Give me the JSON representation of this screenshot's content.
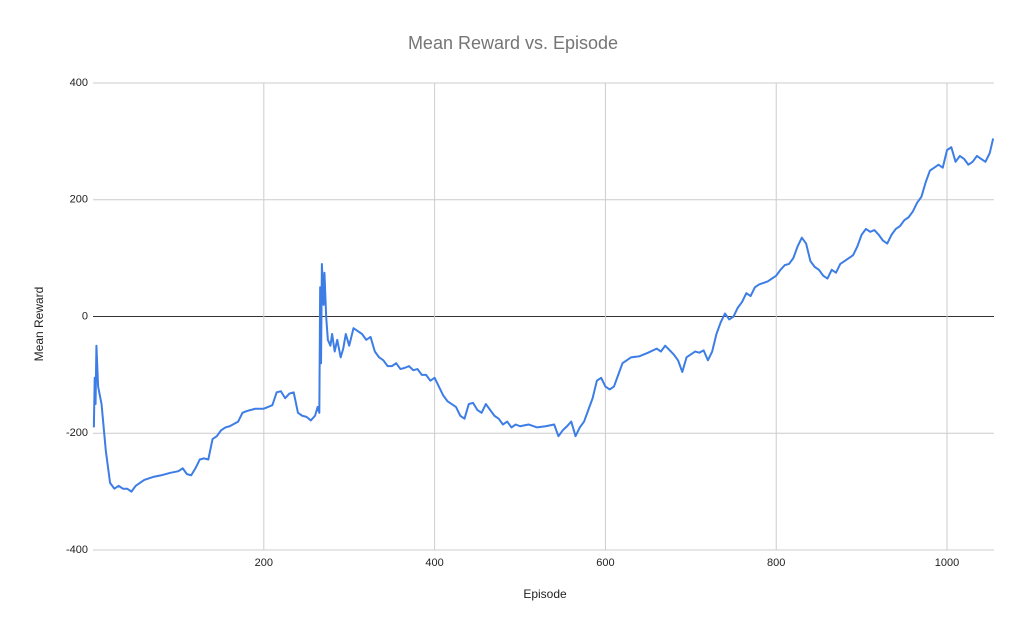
{
  "chart_data": {
    "type": "line",
    "title": "Mean Reward vs. Episode",
    "x_label": "Episode",
    "y_label": "Mean Reward",
    "color": "#3d7de6",
    "grid": true,
    "xlim": [
      0,
      1055
    ],
    "ylim": [
      -400,
      400
    ],
    "xticks": [
      200,
      400,
      600,
      800,
      1000
    ],
    "yticks": [
      -400,
      -200,
      0,
      200,
      400
    ],
    "x": [
      1,
      2,
      3,
      4,
      6,
      10,
      15,
      20,
      25,
      30,
      35,
      40,
      45,
      50,
      60,
      70,
      80,
      90,
      100,
      105,
      110,
      115,
      120,
      125,
      130,
      135,
      140,
      145,
      150,
      155,
      160,
      170,
      175,
      180,
      190,
      200,
      210,
      215,
      220,
      225,
      230,
      235,
      240,
      245,
      250,
      255,
      260,
      263,
      265,
      266,
      267,
      268,
      270,
      271,
      273,
      275,
      278,
      280,
      283,
      286,
      290,
      293,
      296,
      300,
      305,
      310,
      315,
      320,
      325,
      330,
      335,
      340,
      345,
      350,
      355,
      360,
      365,
      370,
      375,
      380,
      385,
      390,
      395,
      400,
      405,
      410,
      415,
      420,
      425,
      430,
      435,
      440,
      445,
      450,
      455,
      460,
      465,
      470,
      475,
      480,
      485,
      490,
      495,
      500,
      510,
      520,
      530,
      540,
      545,
      550,
      555,
      560,
      565,
      570,
      575,
      580,
      585,
      590,
      595,
      600,
      605,
      610,
      615,
      620,
      625,
      630,
      640,
      650,
      660,
      665,
      670,
      680,
      685,
      690,
      695,
      700,
      705,
      710,
      715,
      720,
      725,
      730,
      735,
      740,
      745,
      750,
      755,
      760,
      765,
      770,
      775,
      780,
      790,
      800,
      805,
      810,
      815,
      820,
      825,
      830,
      835,
      840,
      845,
      850,
      855,
      860,
      865,
      870,
      875,
      880,
      890,
      895,
      900,
      905,
      910,
      915,
      920,
      925,
      930,
      935,
      940,
      945,
      950,
      955,
      960,
      965,
      970,
      975,
      980,
      985,
      990,
      995,
      1000,
      1005,
      1010,
      1015,
      1020,
      1025,
      1030,
      1035,
      1040,
      1045,
      1050,
      1054
    ],
    "values": [
      -190,
      -105,
      -150,
      -50,
      -120,
      -150,
      -230,
      -285,
      -295,
      -290,
      -295,
      -295,
      -300,
      -290,
      -280,
      -275,
      -272,
      -268,
      -265,
      -260,
      -270,
      -272,
      -260,
      -245,
      -243,
      -245,
      -210,
      -205,
      -195,
      -190,
      -188,
      -180,
      -165,
      -162,
      -158,
      -158,
      -152,
      -130,
      -128,
      -140,
      -132,
      -130,
      -165,
      -170,
      -172,
      -178,
      -170,
      -155,
      -165,
      50,
      -80,
      90,
      20,
      75,
      0,
      -40,
      -50,
      -30,
      -60,
      -40,
      -70,
      -55,
      -30,
      -50,
      -20,
      -25,
      -30,
      -40,
      -35,
      -60,
      -70,
      -75,
      -85,
      -85,
      -80,
      -90,
      -88,
      -85,
      -92,
      -90,
      -100,
      -100,
      -110,
      -105,
      -120,
      -135,
      -145,
      -150,
      -155,
      -170,
      -175,
      -150,
      -148,
      -160,
      -165,
      -150,
      -160,
      -170,
      -175,
      -185,
      -180,
      -190,
      -185,
      -188,
      -185,
      -190,
      -188,
      -185,
      -205,
      -195,
      -188,
      -180,
      -205,
      -190,
      -180,
      -160,
      -140,
      -110,
      -105,
      -120,
      -125,
      -120,
      -100,
      -80,
      -75,
      -70,
      -68,
      -62,
      -55,
      -60,
      -50,
      -65,
      -75,
      -95,
      -70,
      -65,
      -60,
      -62,
      -58,
      -75,
      -60,
      -30,
      -10,
      5,
      -5,
      0,
      15,
      25,
      40,
      35,
      50,
      55,
      60,
      70,
      80,
      88,
      90,
      100,
      120,
      135,
      125,
      95,
      85,
      80,
      70,
      65,
      80,
      75,
      90,
      95,
      105,
      120,
      140,
      150,
      145,
      148,
      140,
      130,
      125,
      140,
      150,
      155,
      165,
      170,
      180,
      195,
      205,
      230,
      250,
      255,
      260,
      255,
      285,
      290,
      265,
      275,
      270,
      260,
      265,
      275,
      270,
      265,
      280,
      305
    ]
  }
}
